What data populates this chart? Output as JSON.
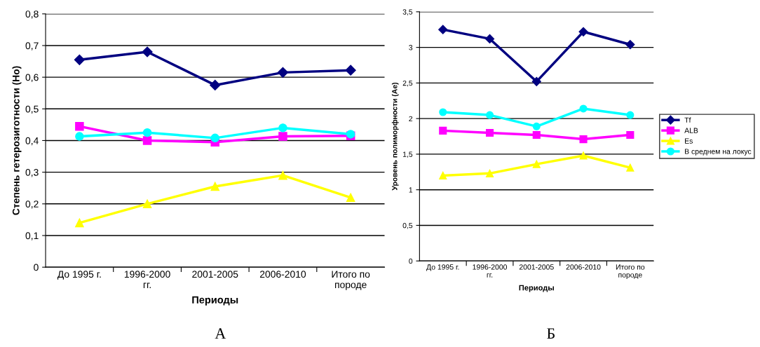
{
  "chart_data": [
    {
      "type": "line",
      "xlabel": "Периоды",
      "ylabel": "Степень гетерозиготности (Но)",
      "categories": [
        "До 1995 г.",
        "1996-2000\nгг.",
        "2001-2005",
        "2006-2010",
        "Итого по\nпороде"
      ],
      "series": [
        {
          "color": "#000080",
          "marker": "diamond",
          "values": [
            0.655,
            0.68,
            0.575,
            0.615,
            0.622
          ]
        },
        {
          "color": "#ff00ff",
          "marker": "square",
          "values": [
            0.445,
            0.4,
            0.395,
            0.413,
            0.415
          ]
        },
        {
          "color": "#ffff00",
          "marker": "triangle",
          "values": [
            0.14,
            0.2,
            0.255,
            0.29,
            0.22
          ]
        },
        {
          "color": "#00ffff",
          "marker": "circle",
          "values": [
            0.413,
            0.425,
            0.408,
            0.44,
            0.42
          ]
        }
      ],
      "ylim": [
        0,
        0.8
      ],
      "yticks": [
        0,
        {
          "value": 0.1,
          "label": "0,1"
        },
        {
          "value": 0.2,
          "label": "0,2"
        },
        {
          "value": 0.3,
          "label": "0,3"
        },
        {
          "value": 0.4,
          "label": "0,4"
        },
        {
          "value": 0.5,
          "label": "0,5"
        },
        {
          "value": 0.6,
          "label": "0,6"
        },
        {
          "value": 0.7,
          "label": "0,7"
        },
        {
          "value": 0.8,
          "label": "0,8"
        }
      ],
      "grid": "y",
      "legend": false,
      "line_style": "solid",
      "annotations": [
        "А"
      ]
    },
    {
      "type": "line",
      "xlabel": "Периоды",
      "ylabel": "Уровень полиморфности (Ае)",
      "categories": [
        "До 1995 г.",
        "1996-2000\nгг.",
        "2001-2005",
        "2006-2010",
        "Итого по\nпороде"
      ],
      "series": [
        {
          "name": "Tf",
          "color": "#000080",
          "marker": "diamond",
          "values": [
            3.25,
            3.12,
            2.52,
            3.22,
            3.04
          ]
        },
        {
          "name": "ALB",
          "color": "#ff00ff",
          "marker": "square",
          "values": [
            1.83,
            1.8,
            1.77,
            1.71,
            1.77
          ]
        },
        {
          "name": "Es",
          "color": "#ffff00",
          "marker": "triangle",
          "values": [
            1.2,
            1.23,
            1.36,
            1.48,
            1.31
          ]
        },
        {
          "name": "В среднем на локус",
          "color": "#00ffff",
          "marker": "circle",
          "values": [
            2.09,
            2.05,
            1.89,
            2.14,
            2.05
          ]
        }
      ],
      "ylim": [
        0,
        3.5
      ],
      "yticks": [
        0,
        {
          "value": 0.5,
          "label": "0,5"
        },
        1,
        {
          "value": 1.5,
          "label": "1,5"
        },
        2,
        {
          "value": 2.5,
          "label": "2,5"
        },
        3,
        {
          "value": 3.5,
          "label": "3,5"
        }
      ],
      "grid": "y",
      "legend": "right",
      "line_style": "solid",
      "annotations": [
        "Б"
      ]
    }
  ]
}
